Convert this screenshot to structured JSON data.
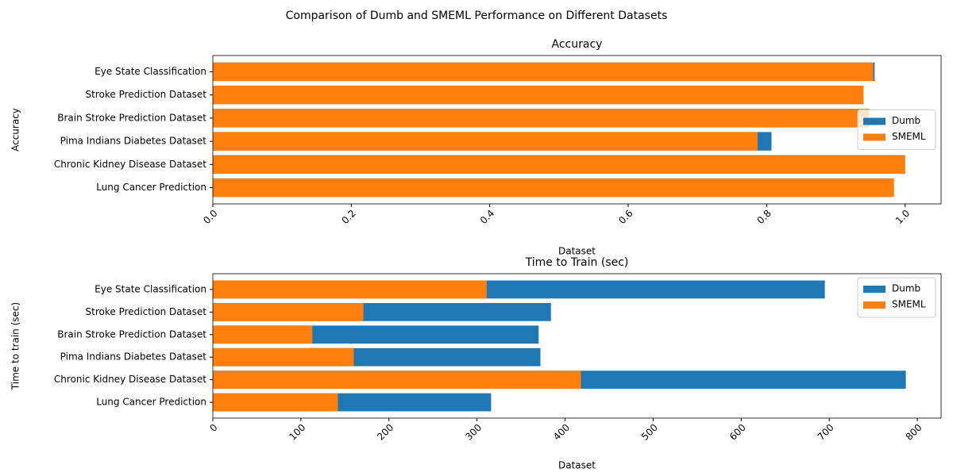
{
  "title": "Comparison of Dumb and SMEML Performance on Different Datasets",
  "chart_data": [
    {
      "type": "barh",
      "title": "Accuracy",
      "x_label": "Dataset",
      "y_label": "Accuracy",
      "categories": [
        "Lung Cancer Prediction",
        "Chronic Kidney Disease Dataset",
        "Pima Indians Diabetes Dataset",
        "Brain Stroke Prediction Dataset",
        "Stroke Prediction Dataset",
        "Eye State Classification"
      ],
      "series": [
        {
          "name": "Dumb",
          "color": "#1f77b4",
          "values": [
            0.98,
            1.0,
            0.807,
            0.947,
            0.939,
            0.956
          ]
        },
        {
          "name": "SMEML",
          "color": "#ff7f0e",
          "values": [
            0.984,
            1.0,
            0.787,
            0.948,
            0.94,
            0.954
          ]
        }
      ],
      "xlim": [
        0,
        1.052
      ],
      "xticks": [
        {
          "value": 0,
          "label": "0.0"
        },
        0.2,
        0.4,
        0.6,
        0.8,
        {
          "value": 1,
          "label": "1.0"
        }
      ],
      "legend": "center right"
    },
    {
      "type": "barh",
      "title": "Time to Train (sec)",
      "x_label": "Dataset",
      "y_label": "Time to train (sec)",
      "categories": [
        "Lung Cancer Prediction",
        "Chronic Kidney Disease Dataset",
        "Pima Indians Diabetes Dataset",
        "Brain Stroke Prediction Dataset",
        "Stroke Prediction Dataset",
        "Eye State Classification"
      ],
      "series": [
        {
          "name": "Dumb",
          "color": "#1f77b4",
          "values": [
            316,
            787,
            372,
            370,
            384,
            695
          ]
        },
        {
          "name": "SMEML",
          "color": "#ff7f0e",
          "values": [
            142,
            418,
            160,
            113,
            171,
            311
          ]
        }
      ],
      "xlim": [
        0,
        827
      ],
      "xticks": [
        0,
        100,
        200,
        300,
        400,
        500,
        600,
        700,
        800
      ],
      "legend": "upper right"
    }
  ]
}
